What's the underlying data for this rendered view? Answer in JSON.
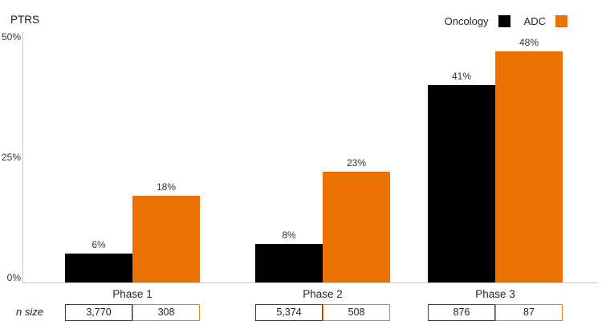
{
  "chart_data": {
    "type": "bar",
    "ylabel": "PTRS",
    "categories": [
      "Phase 1",
      "Phase 2",
      "Phase 3"
    ],
    "series": [
      {
        "name": "Oncology",
        "color": "#000000",
        "box_border": "#404040",
        "values": [
          6,
          8,
          41
        ],
        "value_labels": [
          "6%",
          "8%",
          "41%"
        ],
        "n_sizes": [
          "3,770",
          "5,374",
          "876"
        ]
      },
      {
        "name": "ADC",
        "color": "#EB7100",
        "box_border": "#F07E1E",
        "values": [
          18,
          23,
          48
        ],
        "value_labels": [
          "18%",
          "23%",
          "48%"
        ],
        "n_sizes": [
          "308",
          "508",
          "87"
        ]
      }
    ],
    "ylim": [
      0,
      50
    ],
    "yticks": [
      {
        "value": 0,
        "label": "0%"
      },
      {
        "value": 25,
        "label": "25%"
      },
      {
        "value": 50,
        "label": "50%"
      }
    ],
    "grid": false,
    "legend_position": "top-right",
    "axis_color": "#C8C8C8",
    "n_size_label": "n size"
  }
}
